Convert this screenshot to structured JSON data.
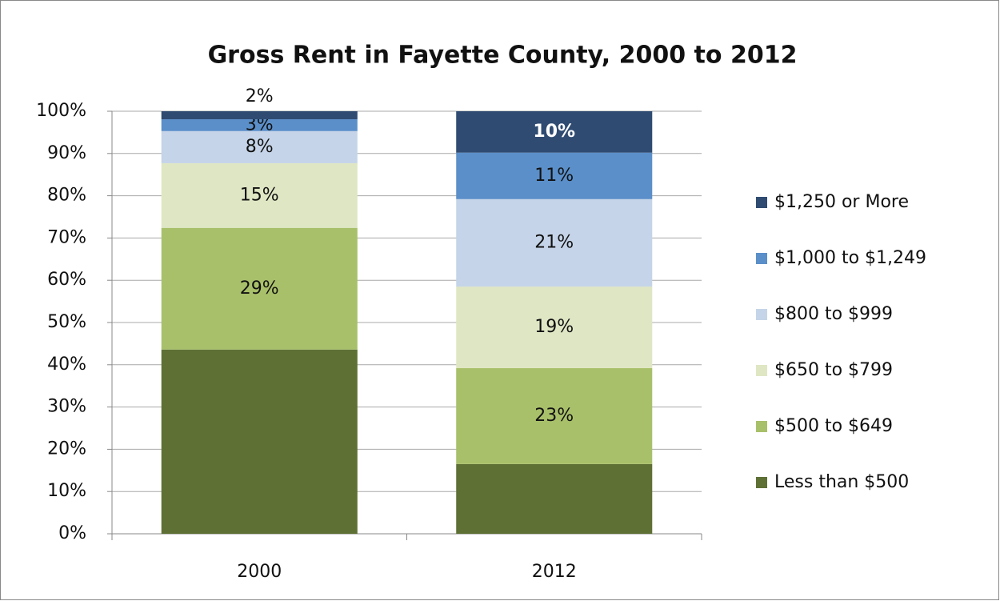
{
  "chart_data": {
    "type": "stacked_bar",
    "title": "Gross Rent in Fayette County, 2000 to 2012",
    "categories": [
      "2000",
      "2012"
    ],
    "series": [
      {
        "name": "Less than $500",
        "color": "#5e7034",
        "values": [
          43.6,
          16.5
        ],
        "value_labels": [
          null,
          null
        ]
      },
      {
        "name": "$500 to $649",
        "color": "#a9c06a",
        "values": [
          28.8,
          22.7
        ],
        "value_labels": [
          "29%",
          "23%"
        ]
      },
      {
        "name": "$650 to $799",
        "color": "#dfe6c4",
        "values": [
          15.3,
          19.3
        ],
        "value_labels": [
          "15%",
          "19%"
        ]
      },
      {
        "name": "$800 to $999",
        "color": "#c5d4e8",
        "values": [
          7.6,
          20.7
        ],
        "value_labels": [
          "8%",
          "21%"
        ]
      },
      {
        "name": "$1,000 to $1,249",
        "color": "#5b8fc9",
        "values": [
          2.8,
          11.0
        ],
        "value_labels": [
          "3%",
          "11%"
        ]
      },
      {
        "name": "$1,250 or More",
        "color": "#2f4b72",
        "values": [
          1.9,
          9.8
        ],
        "value_labels": [
          "2%",
          "10%"
        ]
      }
    ],
    "ylim": [
      0,
      100
    ],
    "yticks": [
      {
        "value": 0,
        "label": "0%"
      },
      {
        "value": 10,
        "label": "10%"
      },
      {
        "value": 20,
        "label": "20%"
      },
      {
        "value": 30,
        "label": "30%"
      },
      {
        "value": 40,
        "label": "40%"
      },
      {
        "value": 50,
        "label": "50%"
      },
      {
        "value": 60,
        "label": "60%"
      },
      {
        "value": 70,
        "label": "70%"
      },
      {
        "value": 80,
        "label": "80%"
      },
      {
        "value": 90,
        "label": "90%"
      },
      {
        "value": 100,
        "label": "100%"
      }
    ],
    "grid": true,
    "legend": "right"
  }
}
